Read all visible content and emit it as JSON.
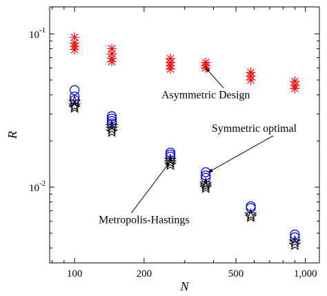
{
  "chart_data": {
    "type": "scatter",
    "xscale": "log",
    "yscale": "log",
    "xlim": [
      78,
      1150
    ],
    "ylim": [
      0.0032,
      0.15
    ],
    "xlabel": "N",
    "ylabel": "R",
    "xticks": [
      100,
      200,
      500,
      1000
    ],
    "xticklabels": [
      "100",
      "200",
      "500",
      "1,000"
    ],
    "yticks": [
      0.01,
      0.1
    ],
    "yticklabels": [
      {
        "base": "10",
        "exp": "-2"
      },
      {
        "base": "10",
        "exp": "-1"
      }
    ],
    "grid": false,
    "colors": {
      "asymmetric": "#ff0000",
      "symmetric": "#0000ff",
      "metropolis": "#000000"
    },
    "series": [
      {
        "key": "asymmetric",
        "marker": "asterisk",
        "points": [
          {
            "x": 100,
            "y": 0.095
          },
          {
            "x": 100,
            "y": 0.087
          },
          {
            "x": 100,
            "y": 0.083
          },
          {
            "x": 100,
            "y": 0.079
          },
          {
            "x": 145,
            "y": 0.08
          },
          {
            "x": 145,
            "y": 0.074
          },
          {
            "x": 145,
            "y": 0.069
          },
          {
            "x": 145,
            "y": 0.066
          },
          {
            "x": 260,
            "y": 0.069
          },
          {
            "x": 260,
            "y": 0.065
          },
          {
            "x": 260,
            "y": 0.062
          },
          {
            "x": 260,
            "y": 0.059
          },
          {
            "x": 370,
            "y": 0.065
          },
          {
            "x": 370,
            "y": 0.062
          },
          {
            "x": 370,
            "y": 0.06
          },
          {
            "x": 580,
            "y": 0.056
          },
          {
            "x": 580,
            "y": 0.053
          },
          {
            "x": 580,
            "y": 0.05
          },
          {
            "x": 900,
            "y": 0.049
          },
          {
            "x": 900,
            "y": 0.046
          },
          {
            "x": 900,
            "y": 0.044
          }
        ]
      },
      {
        "key": "symmetric",
        "marker": "circle",
        "points": [
          {
            "x": 100,
            "y": 0.043
          },
          {
            "x": 100,
            "y": 0.039
          },
          {
            "x": 100,
            "y": 0.037
          },
          {
            "x": 145,
            "y": 0.029
          },
          {
            "x": 145,
            "y": 0.028
          },
          {
            "x": 145,
            "y": 0.027
          },
          {
            "x": 145,
            "y": 0.026
          },
          {
            "x": 260,
            "y": 0.0168
          },
          {
            "x": 260,
            "y": 0.0163
          },
          {
            "x": 260,
            "y": 0.0158
          },
          {
            "x": 370,
            "y": 0.0125
          },
          {
            "x": 370,
            "y": 0.0119
          },
          {
            "x": 370,
            "y": 0.0115
          },
          {
            "x": 580,
            "y": 0.0075
          },
          {
            "x": 580,
            "y": 0.0073
          },
          {
            "x": 900,
            "y": 0.0049
          },
          {
            "x": 900,
            "y": 0.0047
          }
        ]
      },
      {
        "key": "metropolis",
        "marker": "star",
        "points": [
          {
            "x": 100,
            "y": 0.036
          },
          {
            "x": 100,
            "y": 0.034
          },
          {
            "x": 100,
            "y": 0.033
          },
          {
            "x": 145,
            "y": 0.025
          },
          {
            "x": 145,
            "y": 0.024
          },
          {
            "x": 145,
            "y": 0.023
          },
          {
            "x": 260,
            "y": 0.015
          },
          {
            "x": 260,
            "y": 0.0145
          },
          {
            "x": 260,
            "y": 0.014
          },
          {
            "x": 370,
            "y": 0.0105
          },
          {
            "x": 370,
            "y": 0.0102
          },
          {
            "x": 370,
            "y": 0.0099
          },
          {
            "x": 580,
            "y": 0.0066
          },
          {
            "x": 580,
            "y": 0.0064
          },
          {
            "x": 900,
            "y": 0.0044
          },
          {
            "x": 900,
            "y": 0.0042
          }
        ]
      }
    ],
    "annotations": [
      {
        "text": "Asymmetric Design",
        "x": 370,
        "y": 0.038,
        "target": {
          "x": 370,
          "y": 0.06
        }
      },
      {
        "text": "Symmetric optimal",
        "x": 600,
        "y": 0.023,
        "target": {
          "x": 380,
          "y": 0.0125
        }
      },
      {
        "text": "Metropolis-Hastings",
        "x": 200,
        "y": 0.0058,
        "target": {
          "x": 258,
          "y": 0.0145
        }
      }
    ]
  }
}
